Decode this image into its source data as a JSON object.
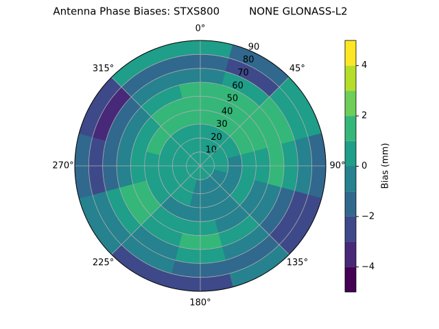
{
  "chart_data": {
    "type": "polar_contour",
    "title": "Antenna Phase Biases: STXS800         NONE GLONASS-L2",
    "colorbar_label": "Bias (mm)",
    "theta": [
      0,
      30,
      60,
      90,
      120,
      150,
      180,
      210,
      240,
      270,
      300,
      330
    ],
    "r": [
      5,
      15,
      25,
      35,
      45,
      55,
      65,
      75,
      85
    ],
    "z": [
      [
        0.5,
        0.5,
        0.5,
        0.5,
        0.5,
        0.5,
        0.5,
        0.5,
        0.5,
        0.5,
        0.5,
        0.5
      ],
      [
        0.5,
        0.5,
        0.5,
        0.5,
        -0.5,
        -0.5,
        -0.5,
        0.5,
        0.5,
        0.5,
        0.5,
        0.5
      ],
      [
        0.5,
        0.5,
        0.5,
        -0.5,
        -0.5,
        -0.5,
        -0.5,
        0.5,
        0.5,
        0.5,
        0.5,
        0.5
      ],
      [
        1.5,
        1.5,
        1.5,
        0.5,
        0.5,
        -0.5,
        -0.5,
        -0.5,
        0.5,
        0.5,
        1.5,
        1.5
      ],
      [
        1.5,
        1.5,
        1.5,
        0.5,
        -0.5,
        -0.5,
        0.5,
        0.5,
        1.5,
        0.5,
        0.5,
        1.5
      ],
      [
        1.5,
        1.5,
        1.5,
        1.5,
        -0.5,
        0.5,
        1.5,
        0.5,
        1.5,
        -0.5,
        -0.5,
        0.5
      ],
      [
        -0.5,
        0.5,
        1.5,
        0.5,
        -1.5,
        -0.5,
        0.5,
        -0.5,
        0.5,
        -1.5,
        -1.5,
        -0.5
      ],
      [
        -1.5,
        -2.5,
        0.5,
        -0.5,
        -2.5,
        -1.5,
        -1.5,
        -0.5,
        -0.5,
        -2.5,
        -3.5,
        -1.5
      ],
      [
        0.5,
        -1.5,
        0.5,
        -1.5,
        -2.5,
        -0.5,
        -2.5,
        -2.5,
        -0.5,
        -1.5,
        -2.5,
        0.5
      ]
    ],
    "levels": [
      -5,
      -4,
      -3,
      -2,
      -1,
      0,
      1,
      2,
      3,
      4,
      5
    ],
    "colors": [
      "#440154",
      "#482878",
      "#3e4989",
      "#31688e",
      "#26828e",
      "#1f9e89",
      "#35b779",
      "#6ece58",
      "#b5de2b",
      "#fde725"
    ],
    "xticks": [
      {
        "value": 0,
        "label": "0°"
      },
      {
        "value": 45,
        "label": "45°"
      },
      {
        "value": 90,
        "label": "90°"
      },
      {
        "value": 135,
        "label": "135°"
      },
      {
        "value": 180,
        "label": "180°"
      },
      {
        "value": 225,
        "label": "225°"
      },
      {
        "value": 270,
        "label": "270°"
      },
      {
        "value": 315,
        "label": "315°"
      }
    ],
    "ylim": [
      0,
      90
    ],
    "yticks": [
      10,
      20,
      30,
      40,
      50,
      60,
      70,
      80,
      90
    ],
    "clim": [
      -5,
      5
    ],
    "cticks": [
      {
        "value": -4,
        "label": "−4"
      },
      {
        "value": -2,
        "label": "−2"
      },
      0,
      2,
      4
    ],
    "grid": true
  }
}
